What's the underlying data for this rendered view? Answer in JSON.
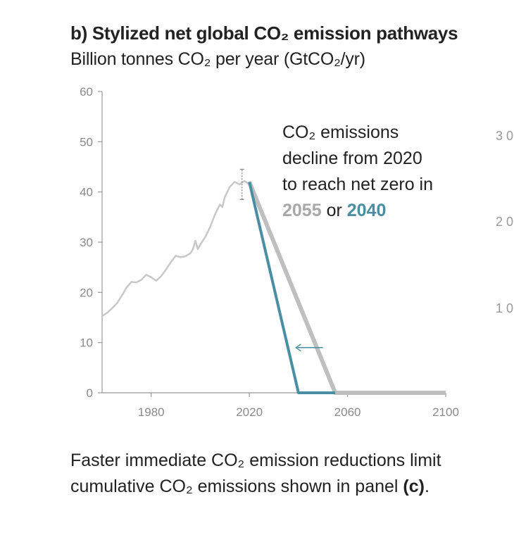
{
  "header": {
    "title": "b) Stylized net global CO₂ emission pathways",
    "subtitle": "Billion tonnes CO₂ per year (GtCO₂/yr)"
  },
  "annotation": {
    "line1": "CO₂ emissions",
    "line2": "decline from 2020",
    "line3": "to reach net zero in",
    "year_slow": "2055",
    "connector": "or",
    "year_fast": "2040"
  },
  "caption": {
    "text_before": "Faster immediate CO₂ emission reductions limit cumulative CO₂ emissions shown in panel ",
    "bold": "(c)",
    "text_after": "."
  },
  "adjacent_panel_ticks": [
    "3 0",
    "2 0",
    "1 0"
  ],
  "chart_data": {
    "type": "line",
    "title": "b) Stylized net global CO₂ emission pathways",
    "ylabel": "Billion tonnes CO₂ per year (GtCO₂/yr)",
    "xlim": [
      1960,
      2100
    ],
    "ylim": [
      0,
      60
    ],
    "xticks": [
      1980,
      2020,
      2060,
      2100
    ],
    "yticks": [
      0,
      10,
      20,
      30,
      40,
      50,
      60
    ],
    "grid": false,
    "colors": {
      "historical": "#c8c8c8",
      "slow": "#bfbfbf",
      "fast": "#4a8ea3",
      "axis": "#999999"
    },
    "series": [
      {
        "key": "historical",
        "x": [
          1960,
          1962,
          1964,
          1966,
          1968,
          1970,
          1972,
          1974,
          1976,
          1978,
          1980,
          1982,
          1984,
          1986,
          1988,
          1990,
          1992,
          1994,
          1996,
          1997,
          1998,
          1999,
          2000,
          2002,
          2004,
          2006,
          2008,
          2009,
          2010,
          2012,
          2014,
          2016,
          2018,
          2020
        ],
        "y": [
          15.3,
          15.9,
          16.8,
          17.8,
          19.3,
          21.0,
          22.1,
          22.0,
          22.5,
          23.5,
          23.0,
          22.3,
          23.2,
          24.5,
          26.0,
          27.3,
          27.0,
          27.2,
          27.8,
          28.6,
          30.3,
          28.6,
          29.5,
          31.0,
          33.0,
          35.5,
          37.5,
          37.0,
          39.0,
          41.0,
          42.0,
          41.5,
          42.2,
          41.5
        ]
      },
      {
        "key": "slow",
        "x": [
          2020,
          2055,
          2100
        ],
        "y": [
          42,
          0,
          0
        ]
      },
      {
        "key": "fast",
        "x": [
          2020,
          2040,
          2055
        ],
        "y": [
          42,
          0,
          0
        ]
      }
    ],
    "error_bar": {
      "x": 2017,
      "y": 41.5,
      "low": 38.5,
      "high": 44.5
    },
    "arrow": {
      "from_x": 2050,
      "to_x": 2039,
      "y": 9
    }
  }
}
